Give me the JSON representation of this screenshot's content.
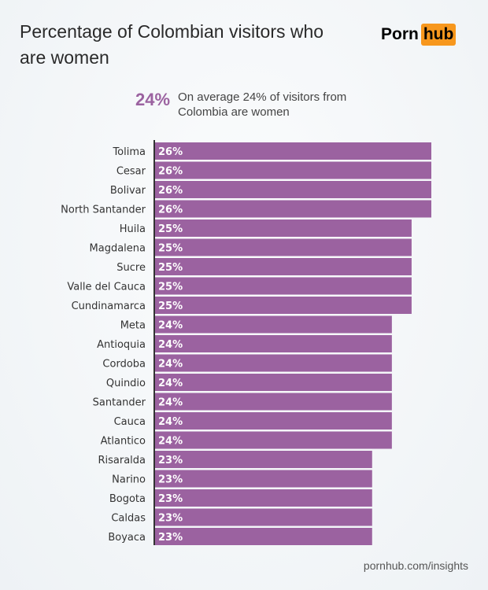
{
  "header": {
    "title": "Percentage of Colombian visitors who are women",
    "logo_left": "Porn",
    "logo_right": "hub"
  },
  "summary": {
    "value": "24%",
    "text": "On average 24% of visitors from Colombia are women"
  },
  "footer": {
    "source": "pornhub.com/insights"
  },
  "colors": {
    "bar": "#9b62a0",
    "accent": "#9b62a0",
    "logo_orange": "#f7971d"
  },
  "chart_data": {
    "type": "bar",
    "orientation": "horizontal",
    "xlim": [
      12,
      26
    ],
    "grid": false,
    "categories": [
      "Tolima",
      "Cesar",
      "Bolivar",
      "North Santander",
      "Huila",
      "Magdalena",
      "Sucre",
      "Valle del Cauca",
      "Cundinamarca",
      "Meta",
      "Antioquia",
      "Cordoba",
      "Quindio",
      "Santander",
      "Cauca",
      "Atlantico",
      "Risaralda",
      "Narino",
      "Bogota",
      "Caldas",
      "Boyaca"
    ],
    "values": [
      26,
      26,
      26,
      26,
      25,
      25,
      25,
      25,
      25,
      24,
      24,
      24,
      24,
      24,
      24,
      24,
      23,
      23,
      23,
      23,
      23
    ],
    "value_labels": [
      "26%",
      "26%",
      "26%",
      "26%",
      "25%",
      "25%",
      "25%",
      "25%",
      "25%",
      "24%",
      "24%",
      "24%",
      "24%",
      "24%",
      "24%",
      "24%",
      "23%",
      "23%",
      "23%",
      "23%",
      "23%"
    ]
  }
}
